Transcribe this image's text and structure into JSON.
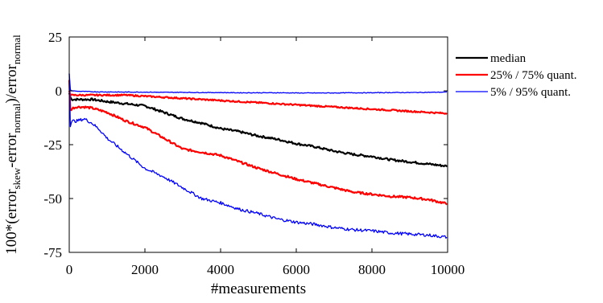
{
  "chart_data": {
    "type": "line",
    "xlabel": "#measurements",
    "ylabel_parts": {
      "prefix": "100*(error",
      "sub1": "skew",
      "middle": "-error",
      "sub2": "normal",
      "suffix": ")/error",
      "sub3": "normal"
    },
    "xlim": [
      0,
      10000
    ],
    "ylim": [
      -75,
      25
    ],
    "xticks": [
      0,
      2000,
      4000,
      6000,
      8000,
      10000
    ],
    "yticks": [
      25,
      0,
      -25,
      -50,
      -75
    ],
    "grid": false,
    "legend_position": "right",
    "x": [
      0,
      30,
      60,
      100,
      200,
      400,
      600,
      800,
      1000,
      1500,
      2000,
      2500,
      3000,
      3500,
      4000,
      4500,
      5000,
      5500,
      6000,
      6500,
      7000,
      7500,
      8000,
      8500,
      9000,
      9500,
      10000
    ],
    "series": [
      {
        "name": "median",
        "color": "#000000",
        "width": 2.2,
        "values": [
          -1,
          -3,
          -4,
          -4,
          -4,
          -4,
          -4,
          -4.5,
          -5,
          -6,
          -7,
          -10,
          -13,
          -15,
          -17.5,
          -19,
          -21,
          -22.5,
          -24.5,
          -26,
          -28,
          -29.5,
          -30.5,
          -32,
          -33,
          -34,
          -35
        ]
      },
      {
        "name": "25% / 75% quant.",
        "color": "#ff0000",
        "width": 2.2,
        "values": [
          5,
          -9,
          -8.5,
          -8,
          -7.5,
          -7.5,
          -8,
          -9,
          -10,
          -14,
          -17,
          -22,
          -27,
          -28.5,
          -30,
          -33,
          -36,
          -38.5,
          -41,
          -43,
          -45,
          -47,
          -48,
          -49,
          -49.5,
          -50.5,
          -52.5
        ]
      },
      {
        "name": "25% / 75% quant.",
        "color": "#ff0000",
        "width": 2.2,
        "values": [
          0,
          -2,
          -2,
          -2,
          -2,
          -2,
          -2,
          -2,
          -2,
          -2,
          -2.5,
          -3,
          -3.5,
          -4,
          -4.5,
          -5,
          -5.5,
          -6,
          -6.5,
          -7,
          -7.5,
          -8,
          -8.5,
          -9,
          -9.5,
          -10,
          -10.5
        ]
      },
      {
        "name": "5% / 95% quant.",
        "color": "#0000ff",
        "width": 1.3,
        "values": [
          8,
          -16,
          -14.5,
          -14,
          -14,
          -13,
          -15,
          -18,
          -22,
          -29,
          -36,
          -40,
          -45,
          -50,
          -52,
          -55,
          -57,
          -59.5,
          -61,
          -62,
          -63.5,
          -64.5,
          -65,
          -66,
          -66.5,
          -67,
          -68
        ]
      },
      {
        "name": "5% / 95% quant.",
        "color": "#0000ff",
        "width": 1.3,
        "values": [
          8,
          0.5,
          0,
          0,
          -0.2,
          -0.3,
          -0.4,
          -0.5,
          -0.5,
          -0.6,
          -0.6,
          -0.7,
          -0.7,
          -0.8,
          -0.8,
          -0.9,
          -0.9,
          -0.9,
          -1,
          -1,
          -1,
          -0.9,
          -0.9,
          -0.8,
          -0.8,
          -0.7,
          -0.6
        ]
      }
    ],
    "legend": [
      {
        "label": "median",
        "color": "#000000",
        "width": 2.2
      },
      {
        "label": "25% / 75% quant.",
        "color": "#ff0000",
        "width": 2.2
      },
      {
        "label": "5% / 95% quant.",
        "color": "#0000ff",
        "width": 1.3
      }
    ]
  }
}
